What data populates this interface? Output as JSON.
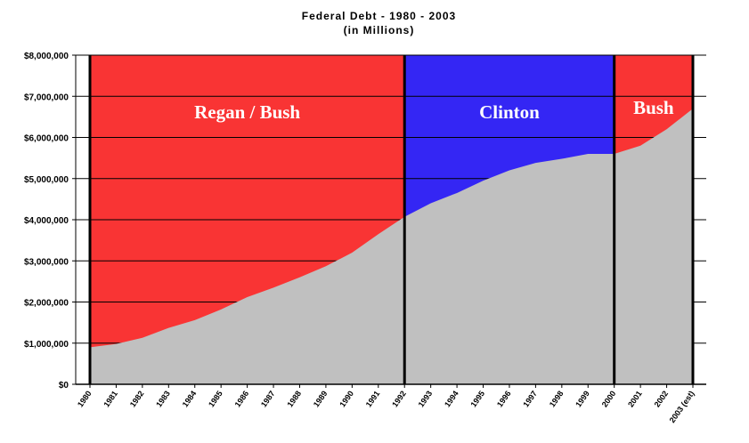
{
  "chart_data": {
    "type": "area",
    "title": "Federal Debt - 1980 - 2003",
    "subtitle": "(in Millions)",
    "xlabel": "",
    "ylabel": "",
    "ylim": [
      0,
      8000000
    ],
    "y_ticks": [
      0,
      1000000,
      2000000,
      3000000,
      4000000,
      5000000,
      6000000,
      7000000,
      8000000
    ],
    "y_tick_labels": [
      "$0",
      "$1,000,000",
      "$2,000,000",
      "$3,000,000",
      "$4,000,000",
      "$5,000,000",
      "$6,000,000",
      "$7,000,000",
      "$8,000,000"
    ],
    "x": [
      "1980",
      "1981",
      "1982",
      "1983",
      "1984",
      "1985",
      "1986",
      "1987",
      "1988",
      "1989",
      "1990",
      "1991",
      "1992",
      "1993",
      "1994",
      "1995",
      "1996",
      "1997",
      "1998",
      "1999",
      "2000",
      "2001",
      "2002",
      "2003 (est)"
    ],
    "values": [
      900000,
      980000,
      1130000,
      1370000,
      1560000,
      1820000,
      2120000,
      2350000,
      2600000,
      2870000,
      3200000,
      3650000,
      4070000,
      4400000,
      4650000,
      4950000,
      5200000,
      5380000,
      5480000,
      5600000,
      5600000,
      5800000,
      6200000,
      6700000
    ],
    "grid": true,
    "eras": [
      {
        "label": "Regan / Bush",
        "start": "1980",
        "end": "1992",
        "color": "#f93434"
      },
      {
        "label": "Clinton",
        "start": "1992",
        "end": "2000",
        "color": "#3426f4"
      },
      {
        "label": "Bush",
        "start": "2000",
        "end": "2003 (est)",
        "color": "#f93434"
      }
    ],
    "area_color": "#c0c0c0"
  }
}
